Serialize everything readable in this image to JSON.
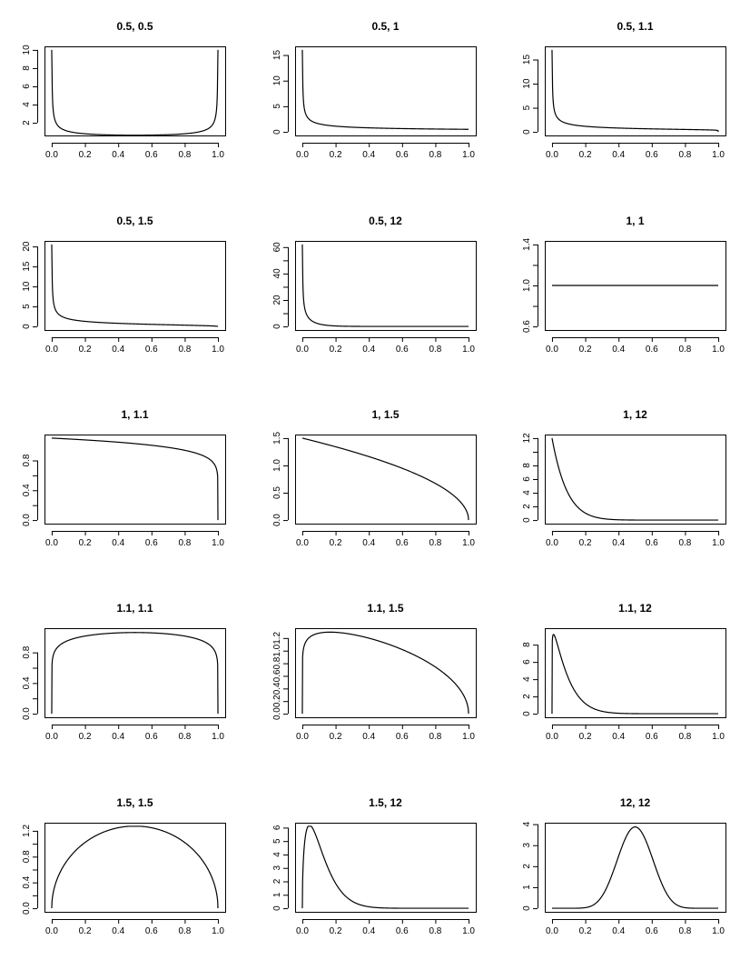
{
  "chart_data": [
    {
      "type": "line",
      "title": "0.5, 0.5",
      "alpha": 0.5,
      "beta": 0.5,
      "xlim": [
        0,
        1
      ],
      "ylim": [
        1,
        10
      ],
      "x_ticks": [
        "0.0",
        "0.2",
        "0.4",
        "0.6",
        "0.8",
        "1.0"
      ],
      "y_ticks": [
        2,
        4,
        6,
        8,
        10
      ],
      "y_tick_labels": [
        "2",
        "4",
        "6",
        "8",
        "10"
      ]
    },
    {
      "type": "line",
      "title": "0.5, 1",
      "alpha": 0.5,
      "beta": 1,
      "xlim": [
        0,
        1
      ],
      "ylim": [
        0,
        16
      ],
      "x_ticks": [
        "0.0",
        "0.2",
        "0.4",
        "0.6",
        "0.8",
        "1.0"
      ],
      "y_ticks": [
        0,
        5,
        10,
        15
      ],
      "y_tick_labels": [
        "0",
        "5",
        "10",
        "15"
      ]
    },
    {
      "type": "line",
      "title": "0.5, 1.1",
      "alpha": 0.5,
      "beta": 1.1,
      "xlim": [
        0,
        1
      ],
      "ylim": [
        0,
        17
      ],
      "x_ticks": [
        "0.0",
        "0.2",
        "0.4",
        "0.6",
        "0.8",
        "1.0"
      ],
      "y_ticks": [
        0,
        5,
        10,
        15
      ],
      "y_tick_labels": [
        "0",
        "5",
        "10",
        "15"
      ]
    },
    {
      "type": "line",
      "title": "0.5, 1.5",
      "alpha": 0.5,
      "beta": 1.5,
      "xlim": [
        0,
        1
      ],
      "ylim": [
        0,
        20.5
      ],
      "x_ticks": [
        "0.0",
        "0.2",
        "0.4",
        "0.6",
        "0.8",
        "1.0"
      ],
      "y_ticks": [
        0,
        5,
        10,
        15,
        20
      ],
      "y_tick_labels": [
        "0",
        "5",
        "10",
        "15",
        "20"
      ]
    },
    {
      "type": "line",
      "title": "0.5, 12",
      "alpha": 0.5,
      "beta": 12,
      "xlim": [
        0,
        1
      ],
      "ylim": [
        0,
        62
      ],
      "x_ticks": [
        "0.0",
        "0.2",
        "0.4",
        "0.6",
        "0.8",
        "1.0"
      ],
      "y_ticks": [
        0,
        10,
        20,
        30,
        40,
        50,
        60
      ],
      "y_tick_labels": [
        "0",
        "",
        "20",
        "",
        "40",
        "",
        "60"
      ]
    },
    {
      "type": "line",
      "title": "1, 1",
      "alpha": 1,
      "beta": 1,
      "xlim": [
        0,
        1
      ],
      "ylim": [
        0.6,
        1.4
      ],
      "x_ticks": [
        "0.0",
        "0.2",
        "0.4",
        "0.6",
        "0.8",
        "1.0"
      ],
      "y_ticks": [
        0.6,
        0.8,
        1.0,
        1.2,
        1.4
      ],
      "y_tick_labels": [
        "0.6",
        "",
        "1.0",
        "",
        "1.4"
      ]
    },
    {
      "type": "line",
      "title": "1, 1.1",
      "alpha": 1,
      "beta": 1.1,
      "xlim": [
        0,
        1
      ],
      "ylim": [
        0,
        1.1
      ],
      "x_ticks": [
        "0.0",
        "0.2",
        "0.4",
        "0.6",
        "0.8",
        "1.0"
      ],
      "y_ticks": [
        0,
        0.2,
        0.4,
        0.6,
        0.8
      ],
      "y_tick_labels": [
        "0.0",
        "",
        "0.4",
        "",
        "0.8"
      ]
    },
    {
      "type": "line",
      "title": "1, 1.5",
      "alpha": 1,
      "beta": 1.5,
      "xlim": [
        0,
        1
      ],
      "ylim": [
        0,
        1.5
      ],
      "x_ticks": [
        "0.0",
        "0.2",
        "0.4",
        "0.6",
        "0.8",
        "1.0"
      ],
      "y_ticks": [
        0,
        0.5,
        1.0,
        1.5
      ],
      "y_tick_labels": [
        "0.0",
        "0.5",
        "1.0",
        "1.5"
      ]
    },
    {
      "type": "line",
      "title": "1, 12",
      "alpha": 1,
      "beta": 12,
      "xlim": [
        0,
        1
      ],
      "ylim": [
        0,
        12
      ],
      "x_ticks": [
        "0.0",
        "0.2",
        "0.4",
        "0.6",
        "0.8",
        "1.0"
      ],
      "y_ticks": [
        0,
        2,
        4,
        6,
        8,
        10,
        12
      ],
      "y_tick_labels": [
        "0",
        "2",
        "4",
        "6",
        "8",
        "",
        "12"
      ]
    },
    {
      "type": "line",
      "title": "1.1, 1.1",
      "alpha": 1.1,
      "beta": 1.1,
      "xlim": [
        0,
        1
      ],
      "ylim": [
        0,
        1.07
      ],
      "x_ticks": [
        "0.0",
        "0.2",
        "0.4",
        "0.6",
        "0.8",
        "1.0"
      ],
      "y_ticks": [
        0,
        0.2,
        0.4,
        0.6,
        0.8
      ],
      "y_tick_labels": [
        "0.0",
        "",
        "0.4",
        "",
        "0.8"
      ]
    },
    {
      "type": "line",
      "title": "1.1, 1.5",
      "alpha": 1.1,
      "beta": 1.5,
      "xlim": [
        0,
        1
      ],
      "ylim": [
        0,
        1.3
      ],
      "x_ticks": [
        "0.0",
        "0.2",
        "0.4",
        "0.6",
        "0.8",
        "1.0"
      ],
      "y_ticks": [
        0,
        0.2,
        0.4,
        0.6,
        0.8,
        1.0,
        1.2
      ],
      "y_tick_labels": [
        "0.0",
        "0.2",
        "0.4",
        "0.6",
        "0.8",
        "1.0",
        "1.2"
      ]
    },
    {
      "type": "line",
      "title": "1.1, 12",
      "alpha": 1.1,
      "beta": 12,
      "xlim": [
        0,
        1
      ],
      "ylim": [
        0,
        9.5
      ],
      "x_ticks": [
        "0.0",
        "0.2",
        "0.4",
        "0.6",
        "0.8",
        "1.0"
      ],
      "y_ticks": [
        0,
        2,
        4,
        6,
        8
      ],
      "y_tick_labels": [
        "0",
        "2",
        "4",
        "6",
        "8"
      ]
    },
    {
      "type": "line",
      "title": "1.5, 1.5",
      "alpha": 1.5,
      "beta": 1.5,
      "xlim": [
        0,
        1
      ],
      "ylim": [
        0,
        1.27
      ],
      "x_ticks": [
        "0.0",
        "0.2",
        "0.4",
        "0.6",
        "0.8",
        "1.0"
      ],
      "y_ticks": [
        0,
        0.2,
        0.4,
        0.6,
        0.8,
        1.0,
        1.2
      ],
      "y_tick_labels": [
        "0.0",
        "",
        "0.4",
        "",
        "0.8",
        "",
        "1.2"
      ]
    },
    {
      "type": "line",
      "title": "1.5, 12",
      "alpha": 1.5,
      "beta": 12,
      "xlim": [
        0,
        1
      ],
      "ylim": [
        0,
        6.1
      ],
      "x_ticks": [
        "0.0",
        "0.2",
        "0.4",
        "0.6",
        "0.8",
        "1.0"
      ],
      "y_ticks": [
        0,
        1,
        2,
        3,
        4,
        5,
        6
      ],
      "y_tick_labels": [
        "0",
        "1",
        "2",
        "3",
        "4",
        "5",
        "6"
      ]
    },
    {
      "type": "line",
      "title": "12, 12",
      "alpha": 12,
      "beta": 12,
      "xlim": [
        0,
        1
      ],
      "ylim": [
        0,
        3.9
      ],
      "x_ticks": [
        "0.0",
        "0.2",
        "0.4",
        "0.6",
        "0.8",
        "1.0"
      ],
      "y_ticks": [
        0,
        1,
        2,
        3,
        4
      ],
      "y_tick_labels": [
        "0",
        "1",
        "2",
        "3",
        "4"
      ]
    }
  ]
}
